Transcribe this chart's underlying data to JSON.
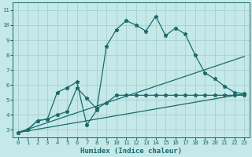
{
  "xlabel": "Humidex (Indice chaleur)",
  "ylabel": "",
  "xlim": [
    -0.5,
    23.5
  ],
  "ylim": [
    2.5,
    11.5
  ],
  "xticks": [
    0,
    1,
    2,
    3,
    4,
    5,
    6,
    7,
    8,
    9,
    10,
    11,
    12,
    13,
    14,
    15,
    16,
    17,
    18,
    19,
    20,
    21,
    22,
    23
  ],
  "yticks": [
    3,
    4,
    5,
    6,
    7,
    8,
    9,
    10,
    11
  ],
  "background_color": "#c5e8e8",
  "grid_color": "#a8d0d0",
  "line_color": "#1a6b6b",
  "lines": [
    {
      "x": [
        0,
        1,
        2,
        3,
        4,
        5,
        6,
        7,
        8,
        9,
        10,
        11,
        12,
        13,
        14,
        15,
        16,
        17,
        18,
        19,
        20,
        21,
        22,
        23
      ],
      "y": [
        2.8,
        3.0,
        3.6,
        3.7,
        5.5,
        5.8,
        6.2,
        3.3,
        4.3,
        8.6,
        9.7,
        10.3,
        10.0,
        9.6,
        10.6,
        9.3,
        9.8,
        9.4,
        8.0,
        6.8,
        6.4,
        5.9,
        5.5,
        5.4
      ]
    },
    {
      "x": [
        0,
        1,
        2,
        3,
        4,
        5,
        6,
        7,
        8,
        9,
        10,
        11,
        12,
        13,
        14,
        15,
        16,
        17,
        18,
        19,
        20,
        21,
        22,
        23
      ],
      "y": [
        2.8,
        3.0,
        3.6,
        3.7,
        4.0,
        4.2,
        5.8,
        5.1,
        4.4,
        4.8,
        5.3,
        5.3,
        5.3,
        5.3,
        5.3,
        5.3,
        5.3,
        5.3,
        5.3,
        5.3,
        5.3,
        5.3,
        5.3,
        5.3
      ]
    },
    {
      "x": [
        0,
        23
      ],
      "y": [
        2.8,
        7.9
      ]
    },
    {
      "x": [
        0,
        23
      ],
      "y": [
        2.8,
        5.4
      ]
    }
  ],
  "marker": "*",
  "markersize": 3.5,
  "linewidth": 0.9,
  "axis_fontsize": 6.5,
  "tick_fontsize": 5.2
}
